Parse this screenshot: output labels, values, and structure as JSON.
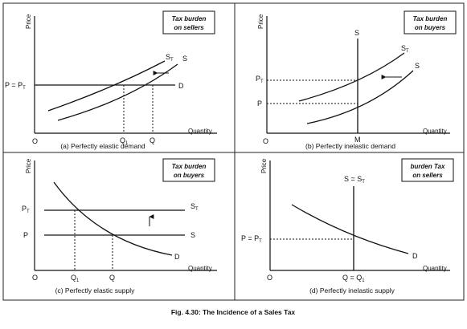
{
  "figure_caption": "Fig. 4.30: The Incidence of a Sales Tax",
  "panels": {
    "a": {
      "caption": "(a) Perfectly elastic demand",
      "box": [
        "Tax burden",
        "on sellers"
      ],
      "y_axis": "Price",
      "x_axis": "Quantity",
      "origin": "O",
      "price_label": "P = P",
      "price_sub": "T",
      "curve_st": "S",
      "curve_st_sub": "T",
      "curve_s": "S",
      "curve_d": "D",
      "q1": "Q",
      "q1_sub": "1",
      "q": "Q"
    },
    "b": {
      "caption": "(b) Perfectly inelastic demand",
      "box": [
        "Tax burden",
        "on buyers"
      ],
      "y_axis": "Price",
      "x_axis": "Quantity",
      "origin": "O",
      "pt_label": "P",
      "pt_sub": "T",
      "p_label": "P",
      "m_label": "M",
      "demand_top": "S",
      "curve_st": "S",
      "curve_st_sub": "T",
      "curve_s": "S"
    },
    "c": {
      "caption": "(c) Perfectly elastic supply",
      "box": [
        "Tax burden",
        "on buyers"
      ],
      "y_axis": "Price",
      "x_axis": "Quantity",
      "origin": "O",
      "pt_label": "P",
      "pt_sub": "T",
      "p_label": "P",
      "curve_st": "S",
      "curve_st_sub": "T",
      "curve_s": "S",
      "curve_d": "D",
      "q1": "Q",
      "q1_sub": "1",
      "q": "Q"
    },
    "d": {
      "caption": "(d) Perfectly inelastic supply",
      "box": [
        "burden Tax",
        "on sellers"
      ],
      "y_axis": "Price",
      "x_axis": "Quantity",
      "origin": "O",
      "price_label": "P = P",
      "price_sub": "T",
      "top_label": "S = S",
      "top_sub": "T",
      "q_label": "Q = Q",
      "q_sub": "1",
      "curve_d": "D"
    }
  }
}
